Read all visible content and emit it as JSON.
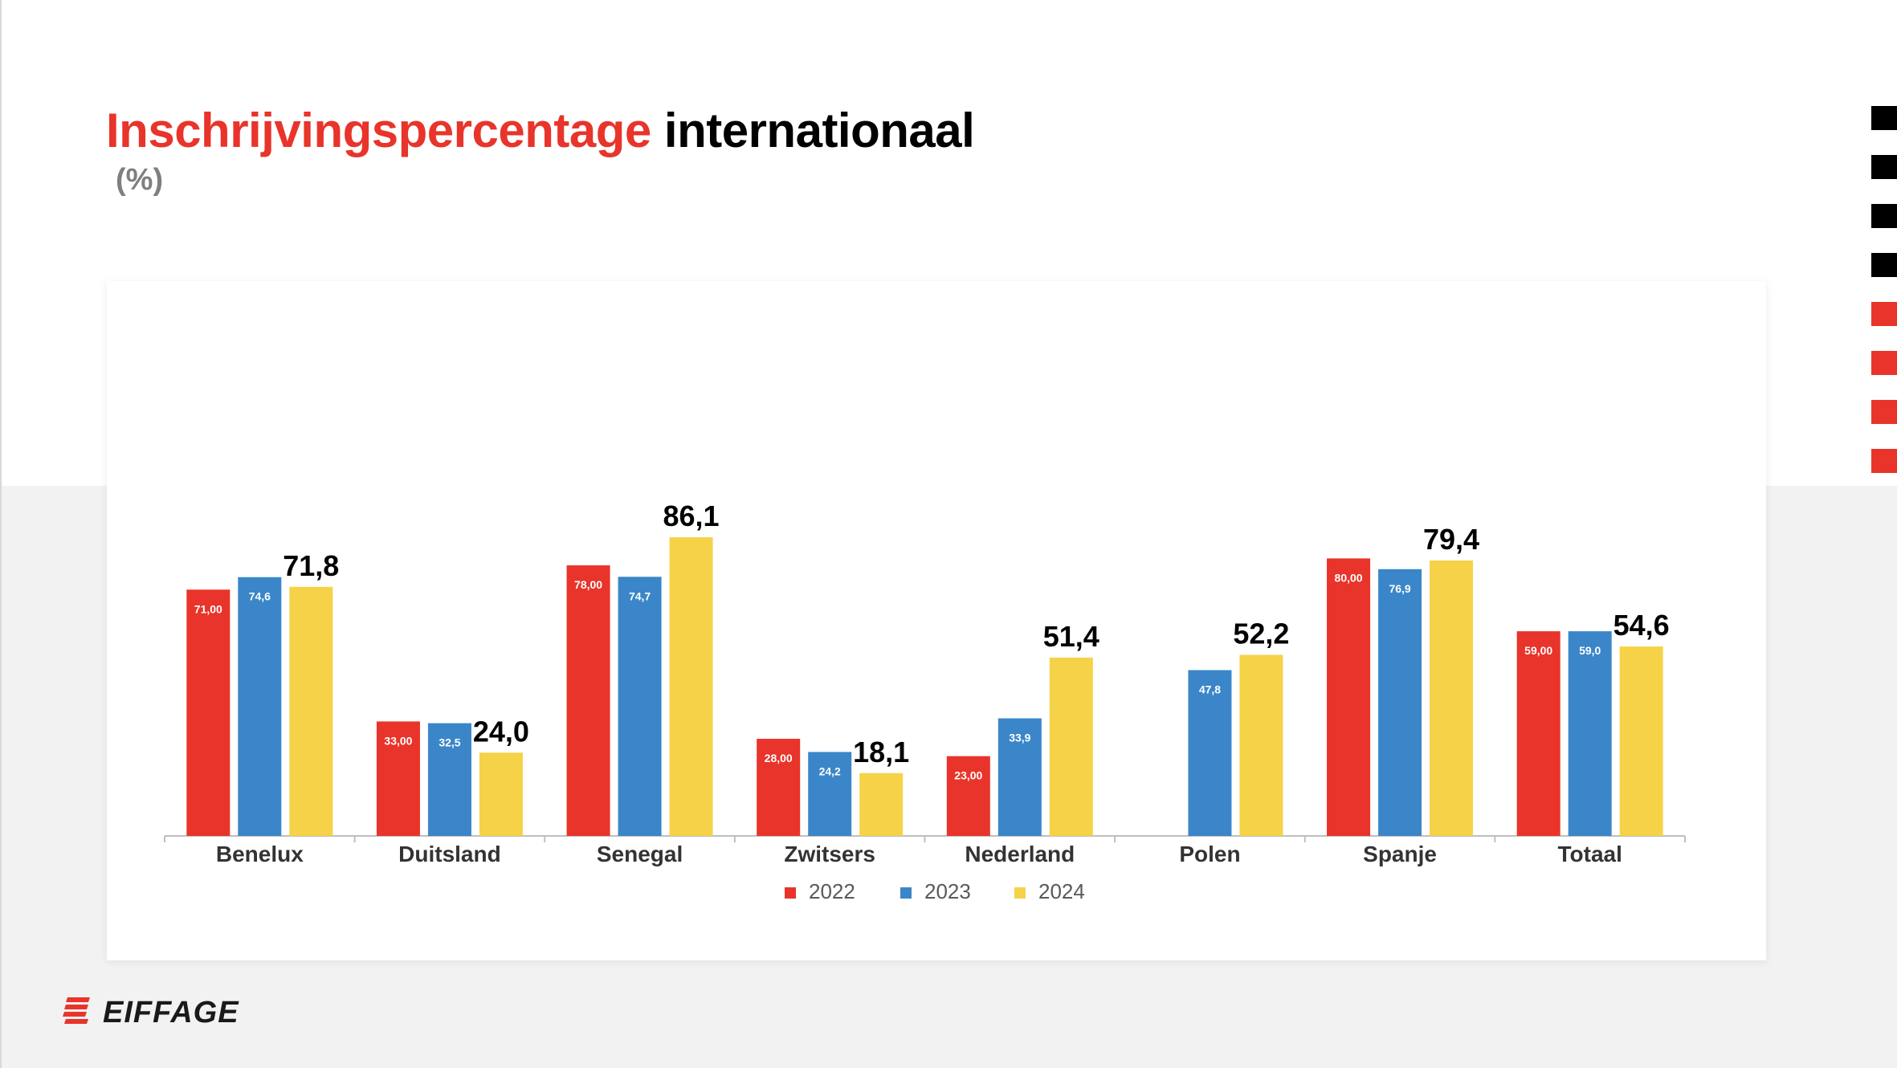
{
  "title": {
    "accent": "Inschrijvingspercentage",
    "rest": "internationaal"
  },
  "subtitle": "(%)",
  "brand": {
    "name": "EIFFAGE"
  },
  "colors": {
    "red": "#e8342a",
    "blue": "#3b86c8",
    "yellow": "#f5d247",
    "black": "#000000"
  },
  "side_squares": [
    "black",
    "black",
    "black",
    "black",
    "red",
    "red",
    "red",
    "red"
  ],
  "chart_data": {
    "type": "bar",
    "categories": [
      "Benelux",
      "Duitsland",
      "Senegal",
      "Zwitsers",
      "Nederland",
      "Polen",
      "Spanje",
      "Totaal"
    ],
    "series": [
      {
        "name": "2022",
        "color": "#e8342a",
        "values": [
          71.0,
          33.0,
          78.0,
          28.0,
          23.0,
          null,
          80.0,
          59.0
        ],
        "labels": [
          "71,00",
          "33,00",
          "78,00",
          "28,00",
          "23,00",
          "",
          "80,00",
          "59,00"
        ]
      },
      {
        "name": "2023",
        "color": "#3b86c8",
        "values": [
          74.6,
          32.5,
          74.7,
          24.2,
          33.9,
          47.8,
          76.9,
          59.0
        ],
        "labels": [
          "74,6",
          "32,5",
          "74,7",
          "24,2",
          "33,9",
          "47,8",
          "76,9",
          "59,0"
        ]
      },
      {
        "name": "2024",
        "color": "#f5d247",
        "values": [
          71.8,
          24.0,
          86.1,
          18.1,
          51.4,
          52.2,
          79.4,
          54.6
        ],
        "labels": [
          "71,8",
          "24,0",
          "86,1",
          "18,1",
          "51,4",
          "52,2",
          "79,4",
          "54,6"
        ]
      }
    ],
    "title": "",
    "xlabel": "",
    "ylabel": "",
    "ylim": [
      0,
      100
    ],
    "grid": false,
    "legend": "bottom-center"
  }
}
